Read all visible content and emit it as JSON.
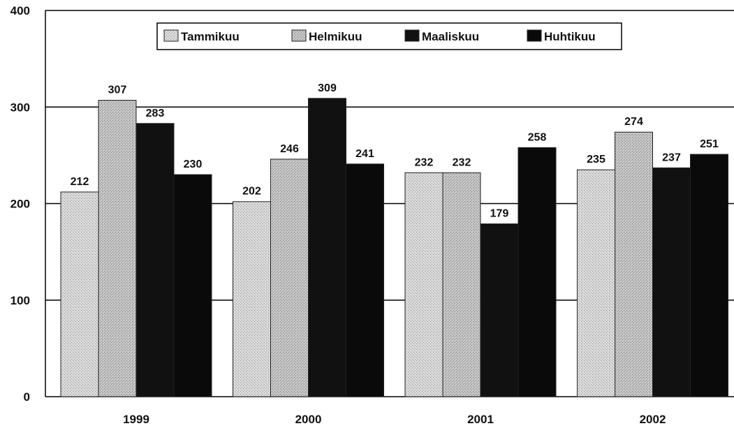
{
  "chart_data": {
    "type": "bar",
    "title": "",
    "xlabel": "",
    "ylabel": "",
    "categories": [
      "1999",
      "2000",
      "2001",
      "2002"
    ],
    "series": [
      {
        "name": "Tammikuu",
        "values": [
          212,
          202,
          232,
          235
        ],
        "color": "#cfcfcf"
      },
      {
        "name": "Helmikuu",
        "values": [
          307,
          246,
          232,
          274
        ],
        "color": "#b8b8b8"
      },
      {
        "name": "Maaliskuu",
        "values": [
          283,
          309,
          179,
          237
        ],
        "color": "#111111"
      },
      {
        "name": "Huhtikuu",
        "values": [
          230,
          241,
          258,
          251
        ],
        "color": "#0a0a0a"
      }
    ],
    "ylim": [
      0,
      400
    ],
    "yticks": [
      0,
      100,
      200,
      300,
      400
    ],
    "grid": true,
    "legend_position": "top-center"
  }
}
